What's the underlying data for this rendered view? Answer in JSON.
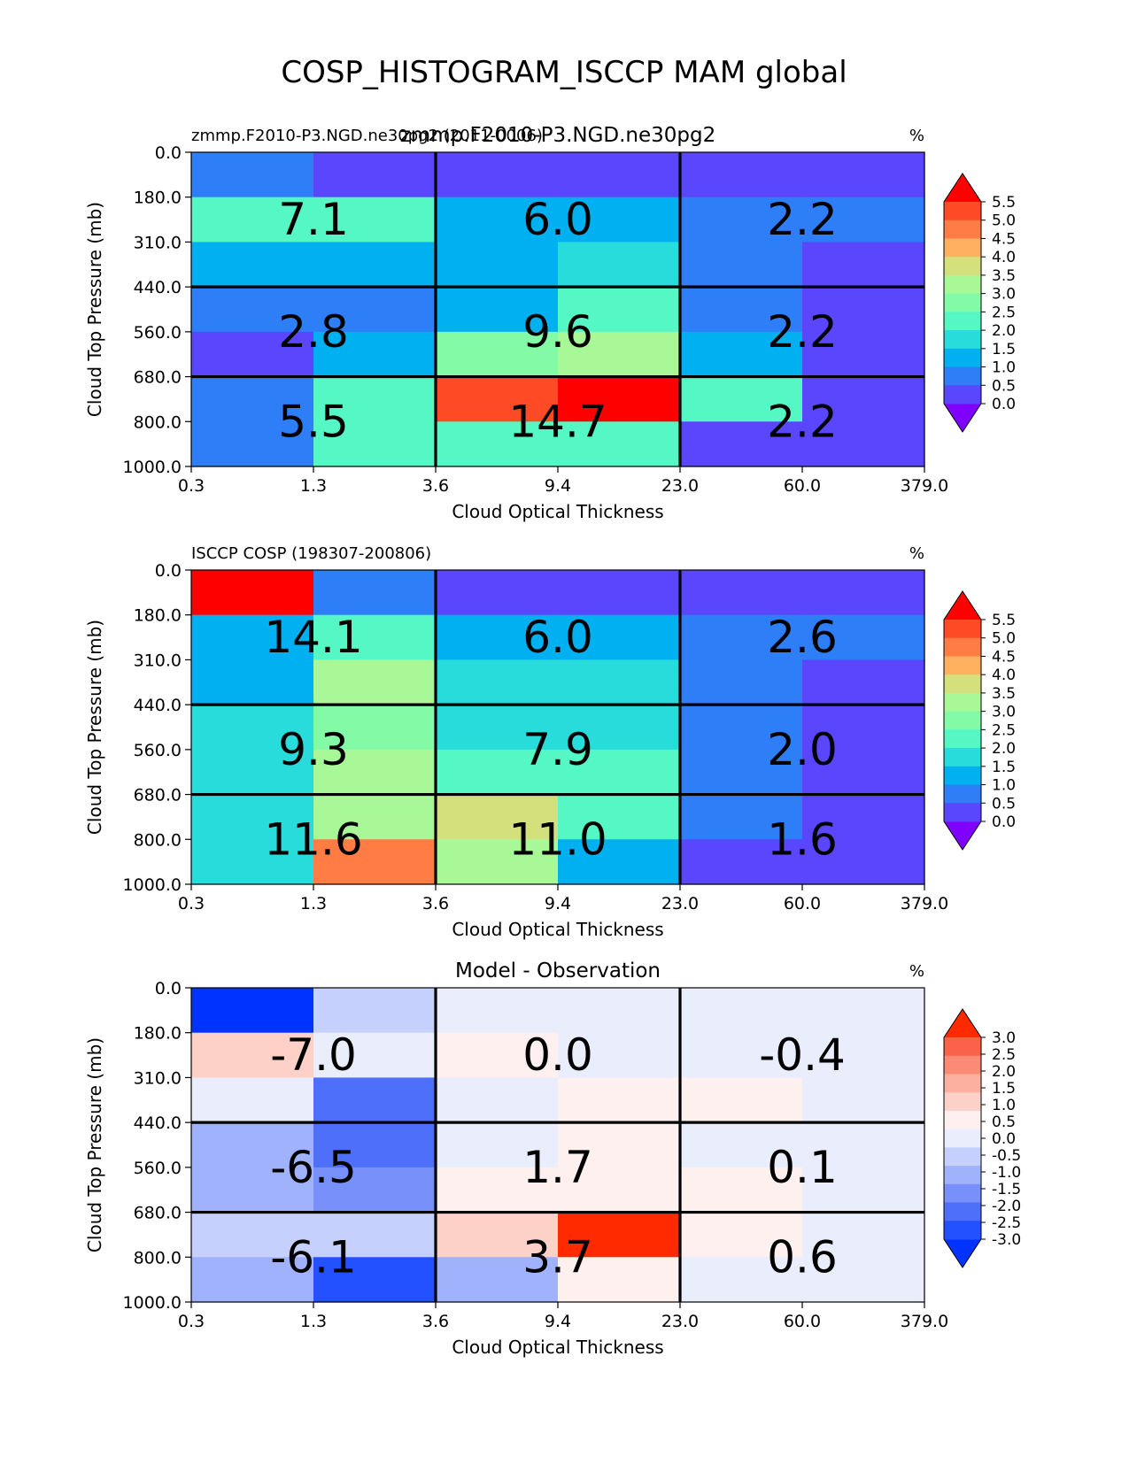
{
  "figure": {
    "title": "COSP_HISTOGRAM_ISCCP MAM global"
  },
  "axes_common": {
    "x_ticks": [
      "0.3",
      "1.3",
      "3.6",
      "9.4",
      "23.0",
      "60.0",
      "379.0"
    ],
    "y_ticks": [
      "0.0",
      "180.0",
      "310.0",
      "440.0",
      "560.0",
      "680.0",
      "800.0",
      "1000.0"
    ],
    "xlabel": "Cloud Optical Thickness",
    "ylabel": "Cloud Top Pressure (mb)",
    "units": "%"
  },
  "colormaps": {
    "abs": [
      "#7f00ff",
      "#5a46fd",
      "#2e7ef7",
      "#00b0f0",
      "#29dcdc",
      "#55f7c5",
      "#83fba6",
      "#a8f898",
      "#d4e07c",
      "#ffb060",
      "#ff7d44",
      "#ff4a26",
      "#ff0000"
    ],
    "diff": [
      "#0033ff",
      "#2451ff",
      "#4d6ff9",
      "#7890f9",
      "#a0b2fb",
      "#c6d0fd",
      "#e9edfc",
      "#fdf0ee",
      "#fdd0c8",
      "#fcb0a0",
      "#fb8b75",
      "#fb624a",
      "#ff2a00"
    ]
  },
  "chart_data": [
    {
      "type": "heatmap",
      "id": "model",
      "title": "zmmp.F2010-P3.NGD.ne30pg2",
      "left_title": "zmmp.F2010-P3.NGD.ne30pg2 (2011-0006)",
      "units": "%",
      "x_edges": [
        0.3,
        1.3,
        3.6,
        9.4,
        23.0,
        60.0,
        379.0
      ],
      "y_edges": [
        0.0,
        180.0,
        310.0,
        440.0,
        560.0,
        680.0,
        800.0,
        1000.0
      ],
      "values": [
        [
          0.8,
          0.2,
          0.2,
          0.2,
          0.2,
          0.2
        ],
        [
          2.3,
          2.0,
          1.4,
          1.4,
          0.8,
          0.8
        ],
        [
          1.4,
          1.4,
          1.4,
          1.8,
          0.8,
          0.2
        ],
        [
          0.8,
          0.8,
          1.4,
          2.4,
          0.8,
          0.2
        ],
        [
          0.2,
          1.4,
          2.7,
          3.2,
          1.4,
          0.2
        ],
        [
          0.8,
          2.4,
          5.1,
          5.8,
          2.0,
          0.2
        ],
        [
          0.8,
          2.0,
          2.4,
          2.0,
          0.2,
          0.2
        ]
      ],
      "box_totals": [
        [
          {
            "label": "7.1"
          },
          {
            "label": "6.0"
          },
          {
            "label": "2.2"
          }
        ],
        [
          {
            "label": "2.8"
          },
          {
            "label": "9.6"
          },
          {
            "label": "2.2"
          }
        ],
        [
          {
            "label": "5.5"
          },
          {
            "label": "14.7"
          },
          {
            "label": "2.2"
          }
        ]
      ],
      "colorbar": {
        "ticks": [
          "0.0",
          "0.5",
          "1.0",
          "1.5",
          "2.0",
          "2.5",
          "3.0",
          "3.5",
          "4.0",
          "4.5",
          "5.0",
          "5.5"
        ],
        "cmap": "abs",
        "vmin": 0.0,
        "vmax": 5.5
      }
    },
    {
      "type": "heatmap",
      "id": "obs",
      "title": "",
      "left_title": "ISCCP COSP (198307-200806)",
      "units": "%",
      "x_edges": [
        0.3,
        1.3,
        3.6,
        9.4,
        23.0,
        60.0,
        379.0
      ],
      "y_edges": [
        0.0,
        180.0,
        310.0,
        440.0,
        560.0,
        680.0,
        800.0,
        1000.0
      ],
      "values": [
        [
          5.8,
          0.8,
          0.2,
          0.2,
          0.2,
          0.2
        ],
        [
          1.4,
          2.0,
          1.4,
          1.4,
          0.8,
          0.8
        ],
        [
          1.4,
          3.2,
          1.8,
          1.8,
          0.8,
          0.2
        ],
        [
          1.8,
          2.7,
          1.8,
          1.8,
          0.8,
          0.2
        ],
        [
          1.8,
          3.2,
          2.3,
          2.3,
          0.8,
          0.2
        ],
        [
          1.8,
          3.2,
          3.7,
          2.4,
          0.8,
          0.2
        ],
        [
          1.8,
          4.8,
          3.2,
          1.4,
          0.2,
          0.2
        ]
      ],
      "box_totals": [
        [
          {
            "label": "14.1"
          },
          {
            "label": "6.0"
          },
          {
            "label": "2.6"
          }
        ],
        [
          {
            "label": "9.3"
          },
          {
            "label": "7.9"
          },
          {
            "label": "2.0"
          }
        ],
        [
          {
            "label": "11.6"
          },
          {
            "label": "11.0"
          },
          {
            "label": "1.6"
          }
        ]
      ],
      "colorbar": {
        "ticks": [
          "0.0",
          "0.5",
          "1.0",
          "1.5",
          "2.0",
          "2.5",
          "3.0",
          "3.5",
          "4.0",
          "4.5",
          "5.0",
          "5.5"
        ],
        "cmap": "abs",
        "vmin": 0.0,
        "vmax": 5.5
      }
    },
    {
      "type": "heatmap",
      "id": "diff",
      "title": "Model - Observation",
      "left_title": "",
      "units": "%",
      "x_edges": [
        0.3,
        1.3,
        3.6,
        9.4,
        23.0,
        60.0,
        379.0
      ],
      "y_edges": [
        0.0,
        180.0,
        310.0,
        440.0,
        560.0,
        680.0,
        800.0,
        1000.0
      ],
      "values": [
        [
          -3.2,
          -0.8,
          -0.2,
          -0.2,
          -0.2,
          -0.2
        ],
        [
          1.3,
          -0.2,
          0.3,
          -0.2,
          -0.2,
          -0.2
        ],
        [
          -0.2,
          -2.3,
          -0.2,
          0.3,
          0.3,
          -0.2
        ],
        [
          -1.3,
          -2.3,
          -0.2,
          0.8,
          -0.2,
          -0.2
        ],
        [
          -1.3,
          -1.7,
          0.3,
          0.8,
          0.3,
          -0.2
        ],
        [
          -0.8,
          -0.8,
          1.3,
          3.3,
          0.8,
          -0.2
        ],
        [
          -1.3,
          -2.8,
          -1.3,
          0.8,
          -0.2,
          -0.2
        ]
      ],
      "box_totals": [
        [
          {
            "label": "-7.0"
          },
          {
            "label": "0.0"
          },
          {
            "label": "-0.4"
          }
        ],
        [
          {
            "label": "-6.5"
          },
          {
            "label": "1.7"
          },
          {
            "label": "0.1"
          }
        ],
        [
          {
            "label": "-6.1"
          },
          {
            "label": "3.7"
          },
          {
            "label": "0.6"
          }
        ]
      ],
      "colorbar": {
        "ticks": [
          "-3.0",
          "-2.5",
          "-2.0",
          "-1.5",
          "-1.0",
          "-0.5",
          "0.0",
          "0.5",
          "1.0",
          "1.5",
          "2.0",
          "2.5",
          "3.0"
        ],
        "cmap": "diff",
        "vmin": -3.0,
        "vmax": 3.0
      }
    }
  ]
}
